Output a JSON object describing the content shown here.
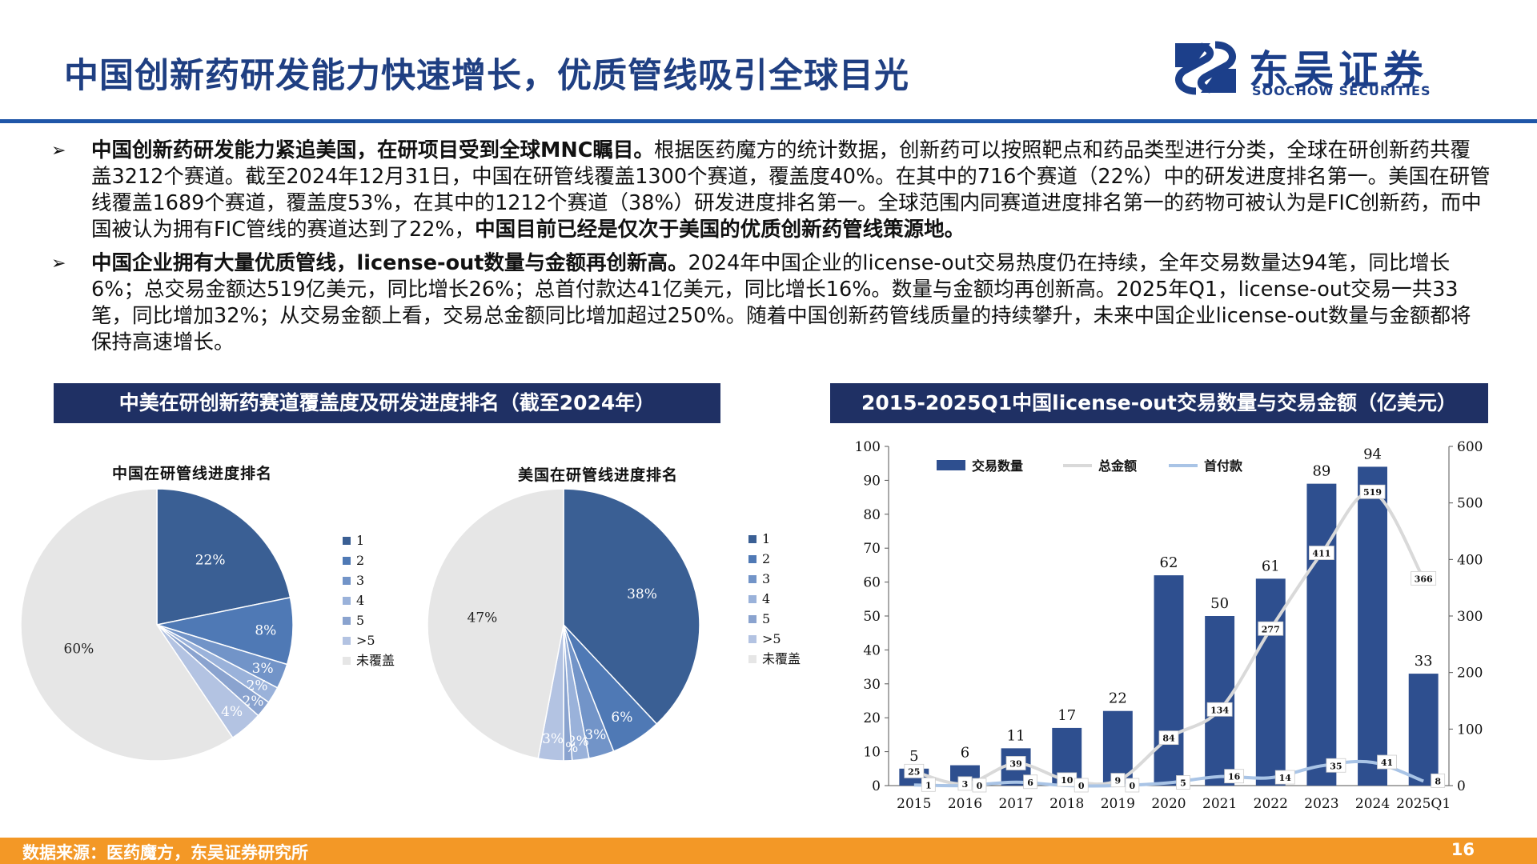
{
  "header": {
    "title": "中国创新药研发能力快速增长，优质管线吸引全球目光",
    "logo_cn": "东吴证券",
    "logo_en": "SOOCHOW SECURITIES"
  },
  "bullets": [
    {
      "lead": "中国创新药研发能力紧追美国，在研项目受到全球MNC瞩目。",
      "body": "根据医药魔方的统计数据，创新药可以按照靶点和药品类型进行分类，全球在研创新药共覆盖3212个赛道。截至2024年12月31日，中国在研管线覆盖1300个赛道，覆盖度40%。在其中的716个赛道（22%）中的研发进度排名第一。美国在研管线覆盖1689个赛道，覆盖度53%，在其中的1212个赛道（38%）研发进度排名第一。全球范围内同赛道进度排名第一的药物可被认为是FIC创新药，而中国被认为拥有FIC管线的赛道达到了22%，",
      "tail": "中国目前已经是仅次于美国的优质创新药管线策源地。"
    },
    {
      "lead": "中国企业拥有大量优质管线，license-out数量与金额再创新高。",
      "body": "2024年中国企业的license-out交易热度仍在持续，全年交易数量达94笔，同比增长6%；总交易金额达519亿美元，同比增长26%；总首付款达41亿美元，同比增长16%。数量与金额均再创新高。2025年Q1，license-out交易一共33笔，同比增加32%；从交易金额上看，交易总金额同比增加超过250%。随着中国创新药管线质量的持续攀升，未来中国企业license-out数量与金额都将保持高速增长。",
      "tail": ""
    }
  ],
  "sections": {
    "left_title": "中美在研创新药赛道覆盖度及研发进度排名（截至2024年）",
    "right_title": "2015-2025Q1中国license-out交易数量与交易金额（亿美元）"
  },
  "icons": {
    "bullet": "arrow-right-icon"
  },
  "chart_data": [
    {
      "type": "pie",
      "title": "中国在研管线进度排名",
      "categories": [
        "1",
        "2",
        "3",
        "4",
        "5",
        ">5",
        "未覆盖"
      ],
      "values": [
        22,
        8,
        3,
        2,
        2,
        4,
        60
      ],
      "labels": [
        "22%",
        "8%",
        "3%",
        "2%",
        "2%",
        "4%",
        "60%"
      ],
      "colors": [
        "#3a5f94",
        "#4f79b5",
        "#7294c8",
        "#9ab2da",
        "#8aa3cf",
        "#b3c3e2",
        "#e6e6e6"
      ],
      "legend_position": "right"
    },
    {
      "type": "pie",
      "title": "美国在研管线进度排名",
      "categories": [
        "1",
        "2",
        "3",
        "4",
        "5",
        ">5",
        "未覆盖"
      ],
      "values": [
        38,
        6,
        3,
        2,
        1,
        3,
        47
      ],
      "labels": [
        "38%",
        "6%",
        "3%",
        "2%",
        "1%",
        "3%",
        "47%"
      ],
      "colors": [
        "#3a5f94",
        "#4f79b5",
        "#7294c8",
        "#9ab2da",
        "#8aa3cf",
        "#b3c3e2",
        "#e6e6e6"
      ],
      "legend_position": "right"
    },
    {
      "type": "bar",
      "categories": [
        "2015",
        "2016",
        "2017",
        "2018",
        "2019",
        "2020",
        "2021",
        "2022",
        "2023",
        "2024",
        "2025Q1"
      ],
      "series": [
        {
          "name": "交易数量",
          "type": "bar",
          "axis": "left",
          "color": "#2e4f8f",
          "values": [
            5,
            6,
            11,
            17,
            22,
            62,
            50,
            61,
            89,
            94,
            33
          ]
        },
        {
          "name": "总金额",
          "type": "line",
          "axis": "right",
          "color": "#d9d9d9",
          "values": [
            25,
            3,
            39,
            10,
            9,
            84,
            134,
            277,
            411,
            519,
            366
          ]
        },
        {
          "name": "首付款",
          "type": "line",
          "axis": "right",
          "color": "#a9c4e6",
          "values": [
            1,
            0,
            6,
            0,
            0,
            5,
            16,
            14,
            35,
            41,
            8
          ]
        }
      ],
      "ylim_left": [
        0,
        100
      ],
      "yticks_left": [
        0,
        10,
        20,
        30,
        40,
        50,
        60,
        70,
        80,
        90,
        100
      ],
      "ylim_right": [
        0,
        600
      ],
      "yticks_right": [
        0,
        100,
        200,
        300,
        400,
        500,
        600
      ],
      "legend_position": "top"
    }
  ],
  "footer": {
    "source": "数据来源：医药魔方，东吴证券研究所",
    "page": "16"
  }
}
